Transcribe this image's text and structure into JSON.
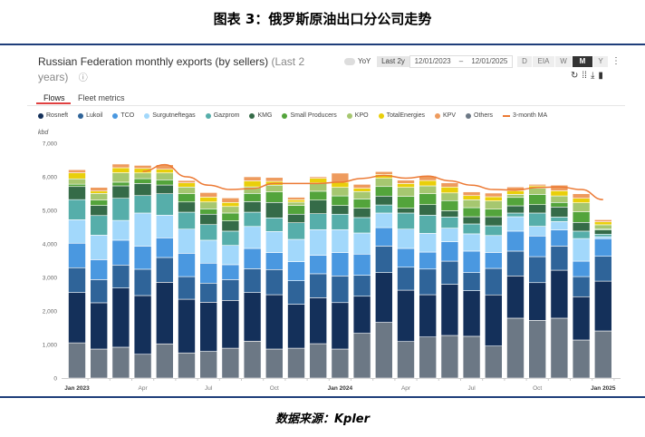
{
  "figure_title": "图表 3：俄罗斯原油出口分公司走势",
  "caption": "数据来源：Kpler",
  "panel": {
    "title": "Russian Federation monthly exports (by sellers)",
    "title_suffix": "(Last 2",
    "title_suffix2": "years)",
    "info_icon": "ⓘ",
    "yoy_label": "YoY",
    "range_button": "Last 2y",
    "date_from": "12/01/2023",
    "date_sep": "–",
    "date_to": "12/01/2025",
    "granularity": [
      "D",
      "EIA",
      "W",
      "M",
      "Y"
    ],
    "selected_granularity": "M",
    "more_icon": "⋮",
    "actions": {
      "refresh": "↻",
      "grid": "⁞⁞",
      "download": "⤓",
      "bookmark": "▮"
    },
    "tabs": [
      "Flows",
      "Fleet metrics"
    ],
    "active_tab": "Flows"
  },
  "chart_data": {
    "type": "bar",
    "stacked": true,
    "ylabel": "kbd",
    "ylim": [
      0,
      7000
    ],
    "yticks": [
      "0",
      "1,000",
      "2,000",
      "3,000",
      "4,000",
      "5,000",
      "6,000",
      "7,000"
    ],
    "xtick_labels": [
      {
        "i": 0,
        "label": "Jan 2023",
        "bold": true
      },
      {
        "i": 3,
        "label": "Apr"
      },
      {
        "i": 6,
        "label": "Jul"
      },
      {
        "i": 9,
        "label": "Oct"
      },
      {
        "i": 12,
        "label": "Jan 2024",
        "bold": true
      },
      {
        "i": 15,
        "label": "Apr"
      },
      {
        "i": 18,
        "label": "Jul"
      },
      {
        "i": 21,
        "label": "Oct"
      },
      {
        "i": 24,
        "label": "Jan 2025",
        "bold": true
      }
    ],
    "categories": [
      "2023-01",
      "2023-02",
      "2023-03",
      "2023-04",
      "2023-05",
      "2023-06",
      "2023-07",
      "2023-08",
      "2023-09",
      "2023-10",
      "2023-11",
      "2023-12",
      "2024-01",
      "2024-02",
      "2024-03",
      "2024-04",
      "2024-05",
      "2024-06",
      "2024-07",
      "2024-08",
      "2024-09",
      "2024-10",
      "2024-11",
      "2024-12",
      "2025-01"
    ],
    "legend_order": [
      "Rosneft",
      "Lukoil",
      "TCO",
      "Surgutneftegas",
      "Gazprom",
      "KMG",
      "Small Producers",
      "KPO",
      "TotalEnergies",
      "KPV",
      "Others",
      "3-month MA"
    ],
    "series": [
      {
        "name": "Others",
        "color": "#6c7885",
        "values": [
          1050,
          865,
          920,
          710,
          1020,
          750,
          795,
          890,
          1100,
          865,
          890,
          1025,
          865,
          1335,
          1660,
          1090,
          1225,
          1270,
          1245,
          955,
          1785,
          1720,
          1785,
          1135,
          1405
        ]
      },
      {
        "name": "Rosneft",
        "color": "#14305a",
        "values": [
          1500,
          1380,
          1765,
          1750,
          1835,
          1600,
          1465,
          1425,
          1450,
          1620,
          1310,
          1370,
          1385,
          1105,
          1485,
          1530,
          1260,
          1525,
          1360,
          1525,
          1260,
          1125,
          1430,
          1290,
          1485
        ]
      },
      {
        "name": "Lukoil",
        "color": "#2f6499",
        "values": [
          740,
          690,
          685,
          785,
          740,
          675,
          570,
          620,
          710,
          750,
          700,
          715,
          795,
          625,
          790,
          685,
          765,
          690,
          540,
          790,
          740,
          775,
          720,
          600,
          740
        ]
      },
      {
        "name": "TCO",
        "color": "#4a98e0",
        "values": [
          730,
          595,
          740,
          690,
          585,
          695,
          595,
          445,
          605,
          505,
          570,
          550,
          695,
          630,
          550,
          560,
          505,
          580,
          640,
          475,
          595,
          615,
          480,
          460,
          525
        ]
      },
      {
        "name": "Surgutneftegas",
        "color": "#a2d8fb",
        "values": [
          700,
          730,
          590,
          985,
          675,
          720,
          685,
          575,
          655,
          630,
          665,
          765,
          685,
          630,
          435,
          575,
          560,
          405,
          515,
          505,
          430,
          290,
          250,
          675,
          60
        ]
      },
      {
        "name": "Gazprom",
        "color": "#56aeaa",
        "values": [
          600,
          585,
          660,
          520,
          640,
          505,
          465,
          425,
          425,
          405,
          495,
          475,
          460,
          460,
          240,
          480,
          540,
          330,
          295,
          290,
          110,
          395,
          135,
          220,
          75
        ]
      },
      {
        "name": "KMG",
        "color": "#356b48",
        "values": [
          390,
          300,
          370,
          360,
          260,
          305,
          310,
          305,
          315,
          460,
          255,
          405,
          260,
          280,
          265,
          145,
          315,
          190,
          215,
          270,
          215,
          250,
          300,
          260,
          125
        ]
      },
      {
        "name": "Small Producers",
        "color": "#53a43b",
        "values": [
          70,
          160,
          110,
          145,
          155,
          245,
          160,
          235,
          245,
          315,
          260,
          265,
          285,
          275,
          285,
          350,
          325,
          300,
          270,
          225,
          250,
          305,
          135,
          315,
          35
        ]
      },
      {
        "name": "KPO",
        "color": "#a6c770",
        "values": [
          160,
          200,
          280,
          170,
          205,
          200,
          205,
          195,
          195,
          200,
          100,
          250,
          255,
          220,
          245,
          270,
          235,
          230,
          235,
          245,
          90,
          185,
          195,
          270,
          120
        ]
      },
      {
        "name": "TotalEnergies",
        "color": "#e9cf0a",
        "values": [
          180,
          70,
          150,
          135,
          110,
          125,
          145,
          120,
          180,
          115,
          70,
          135,
          155,
          100,
          115,
          115,
          160,
          175,
          125,
          125,
          110,
          70,
          155,
          135,
          90
        ]
      },
      {
        "name": "KPV",
        "color": "#ee9b5e",
        "values": [
          90,
          110,
          110,
          90,
          135,
          70,
          135,
          135,
          120,
          115,
          75,
          45,
          270,
          115,
          85,
          100,
          130,
          125,
          110,
          110,
          110,
          45,
          165,
          135,
          60
        ]
      }
    ],
    "ma": {
      "name": "3-month MA",
      "color": "#ec7a35",
      "values": [
        null,
        null,
        null,
        6160,
        6360,
        6000,
        5750,
        5620,
        5650,
        5800,
        5800,
        5800,
        5840,
        5950,
        6040,
        5960,
        6020,
        5880,
        5750,
        5620,
        5600,
        5680,
        5700,
        5620,
        5320
      ]
    },
    "grid": false,
    "legend_position": "top"
  }
}
